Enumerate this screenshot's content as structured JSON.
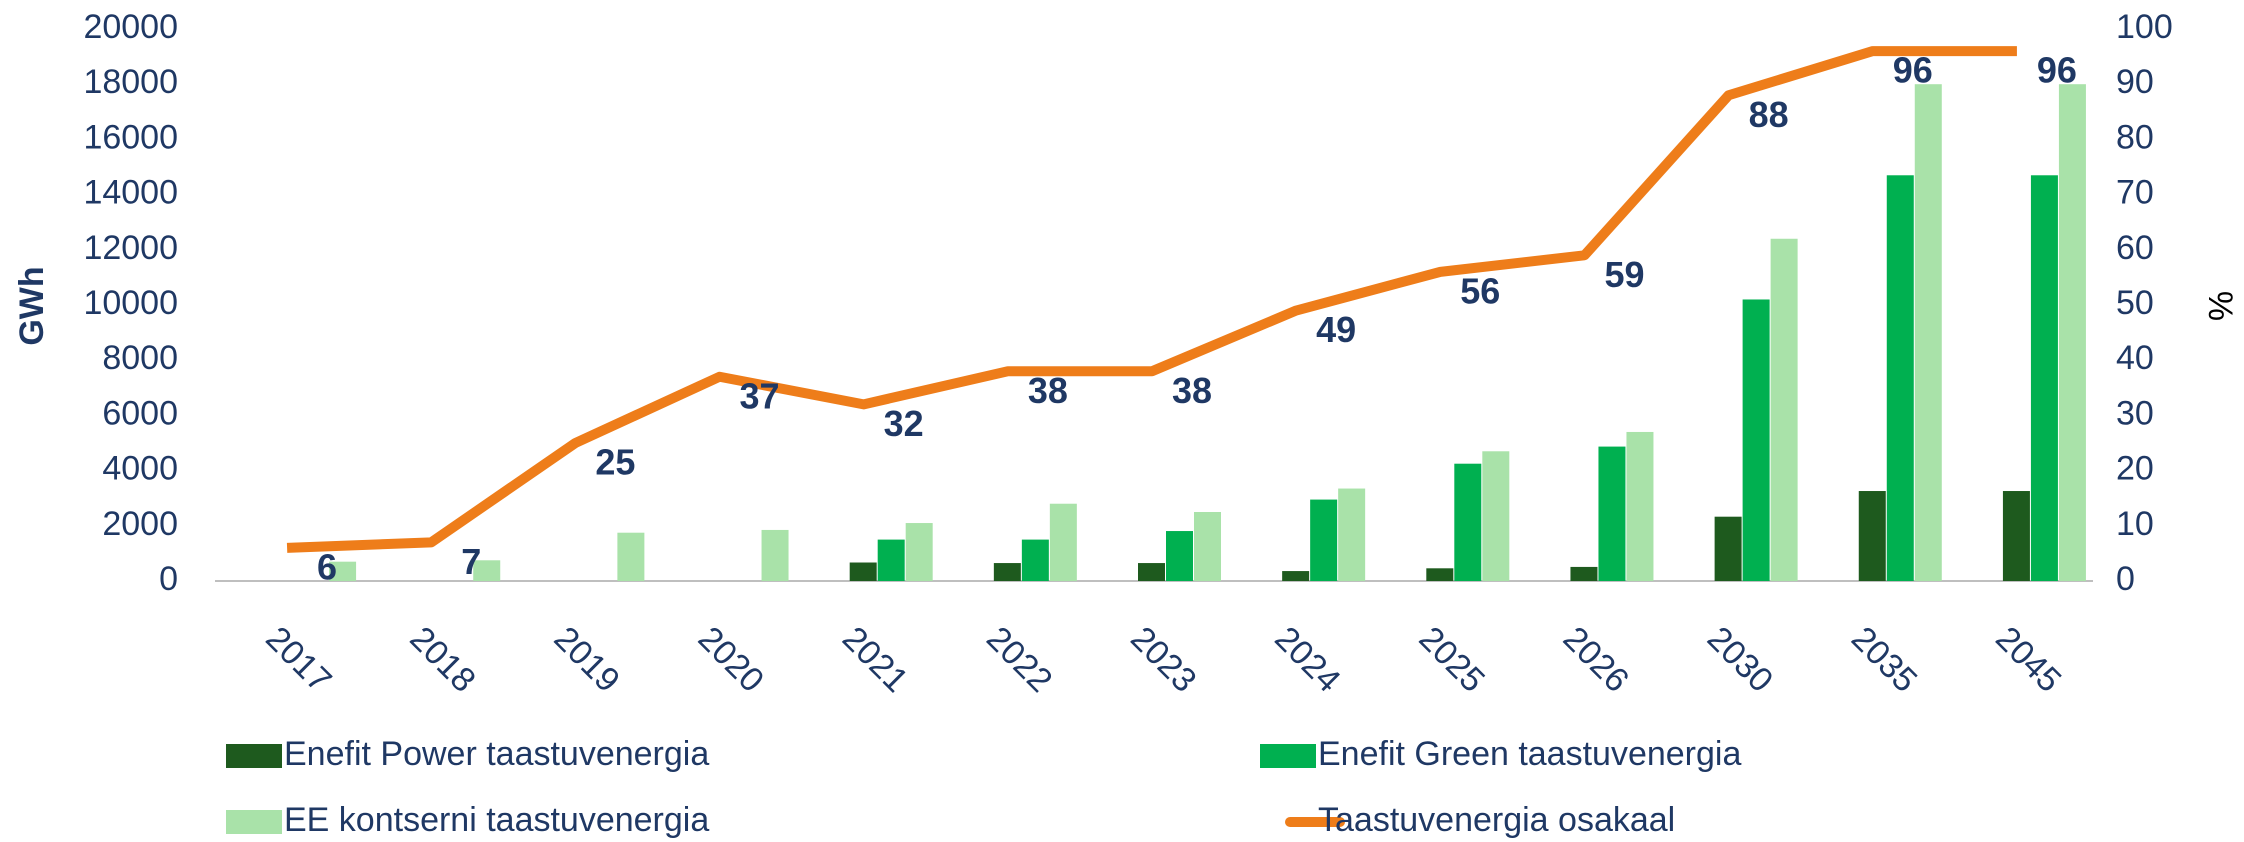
{
  "chart_data": {
    "type": "bar_line",
    "categories": [
      "2017",
      "2018",
      "2019",
      "2020",
      "2021",
      "2022",
      "2023",
      "2024",
      "2025",
      "2026",
      "2030",
      "2035",
      "2045"
    ],
    "series": [
      {
        "name": "Enefit Power taastuvenergia",
        "color": "#1e5a1e",
        "values": [
          0,
          0,
          0,
          0,
          670,
          650,
          650,
          360,
          460,
          510,
          2330,
          3260,
          3260
        ]
      },
      {
        "name": "Enefit Green taastuvenergia",
        "color": "#00b050",
        "values": [
          0,
          0,
          0,
          0,
          1500,
          1500,
          1810,
          2950,
          4250,
          4870,
          10200,
          14700,
          14700
        ]
      },
      {
        "name": "EE kontserni taastuvenergia",
        "color": "#a9e2a9",
        "values": [
          700,
          750,
          1750,
          1850,
          2100,
          2800,
          2500,
          3350,
          4700,
          5400,
          12400,
          18000,
          18000
        ]
      },
      {
        "name": "Taastuvenergia osakaal",
        "color": "#ee7d1a",
        "axis": "y2",
        "type": "line",
        "values": [
          6,
          7,
          25,
          37,
          32,
          38,
          38,
          49,
          56,
          59,
          88,
          96,
          96
        ]
      }
    ],
    "ylabel": "GWh",
    "y2label": "%",
    "ylim": [
      0,
      20000
    ],
    "yticks": [
      0,
      2000,
      4000,
      6000,
      8000,
      10000,
      12000,
      14000,
      16000,
      18000,
      20000
    ],
    "y2lim": [
      0,
      100
    ],
    "y2ticks": [
      0,
      10,
      20,
      30,
      40,
      50,
      60,
      70,
      80,
      90,
      100
    ]
  }
}
